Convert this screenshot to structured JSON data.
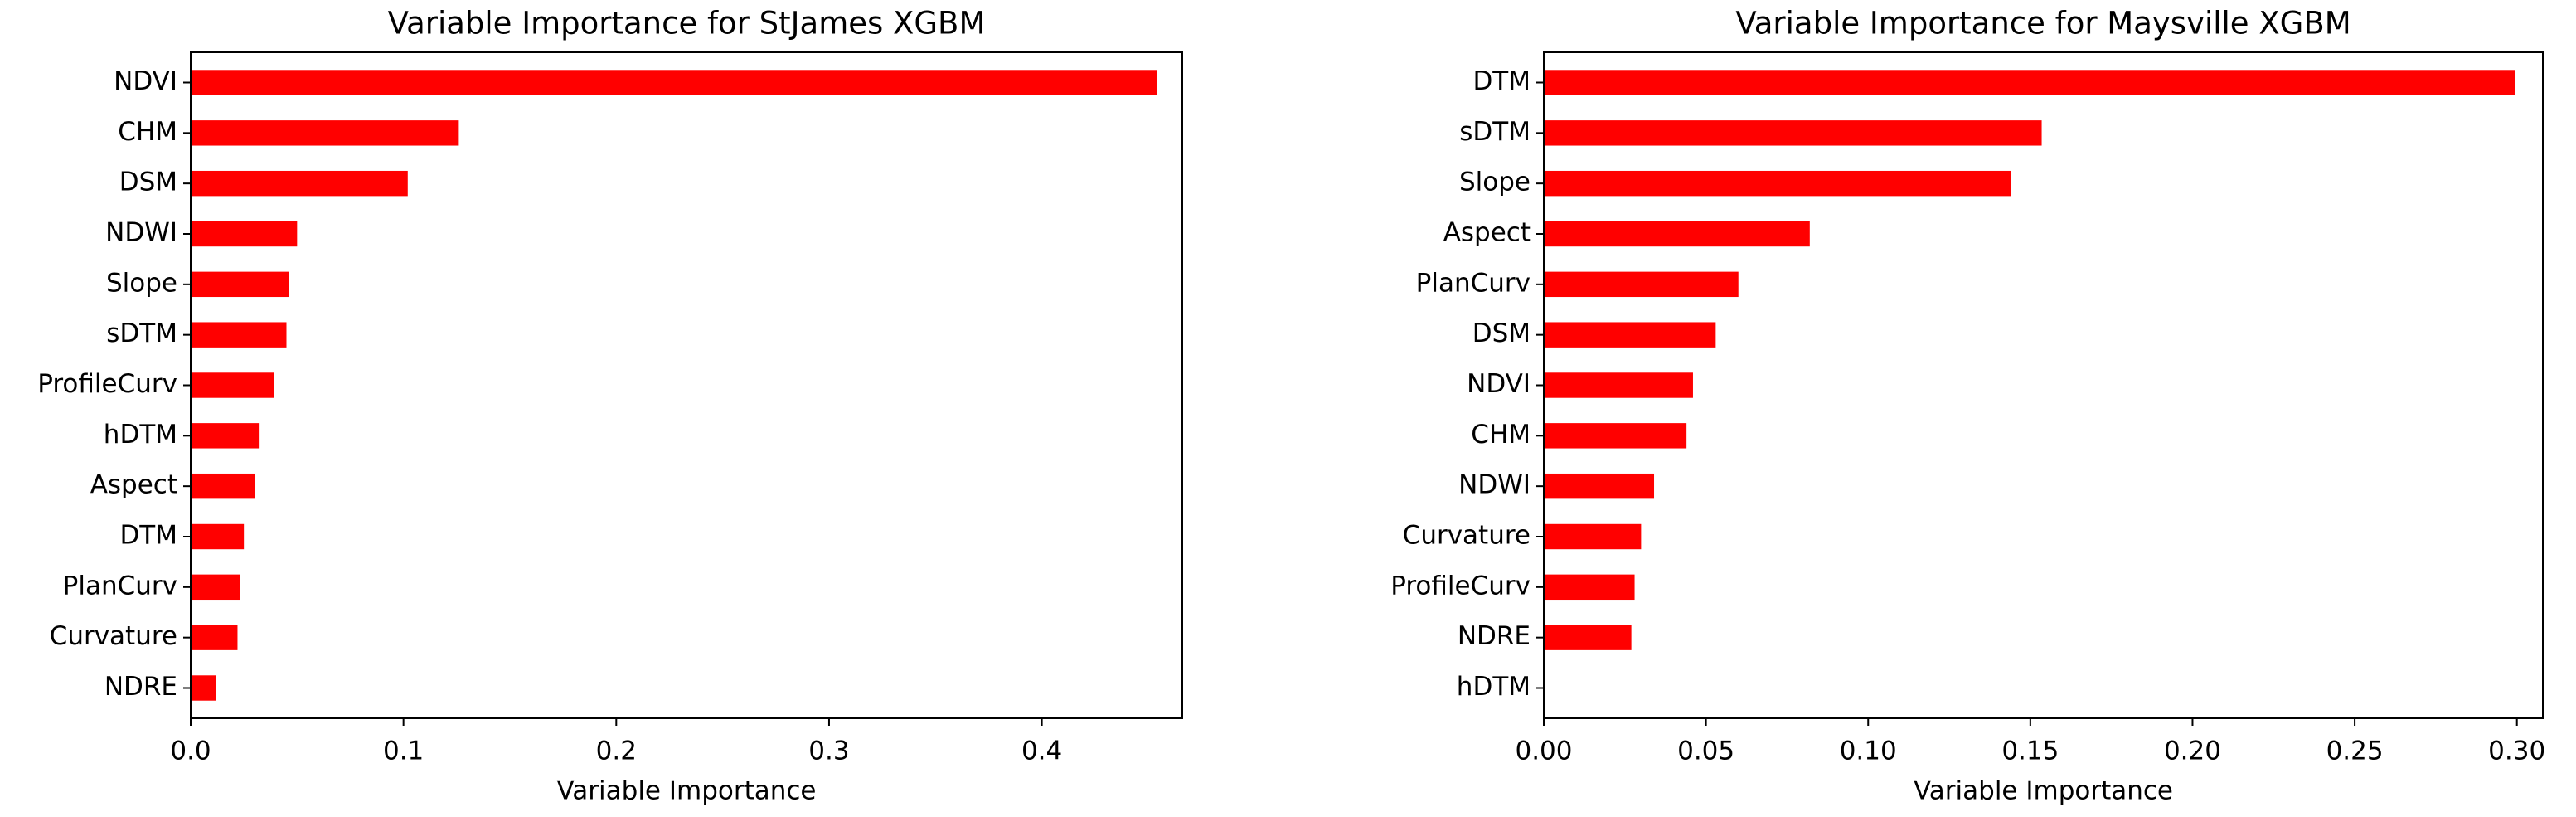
{
  "chart_data": [
    {
      "type": "barh",
      "title": "Variable Importance for StJames XGBM",
      "xlabel": "Variable Importance",
      "categories": [
        "NDVI",
        "CHM",
        "DSM",
        "NDWI",
        "Slope",
        "sDTM",
        "ProfileCurv",
        "hDTM",
        "Aspect",
        "DTM",
        "PlanCurv",
        "Curvature",
        "NDRE"
      ],
      "values": [
        0.454,
        0.126,
        0.102,
        0.05,
        0.046,
        0.045,
        0.039,
        0.032,
        0.03,
        0.025,
        0.023,
        0.022,
        0.012
      ],
      "color": "#ff0000",
      "xlim": [
        0,
        0.466
      ],
      "xticks": [
        {
          "value": 0,
          "label": "0.0"
        },
        0.1,
        0.2,
        0.3,
        0.4
      ]
    },
    {
      "type": "barh",
      "title": "Variable Importance for Maysville XGBM",
      "xlabel": "Variable Importance",
      "categories": [
        "DTM",
        "sDTM",
        "Slope",
        "Aspect",
        "PlanCurv",
        "DSM",
        "NDVI",
        "CHM",
        "NDWI",
        "Curvature",
        "ProfileCurv",
        "NDRE",
        "hDTM"
      ],
      "values": [
        0.2995,
        0.1535,
        0.144,
        0.082,
        0.06,
        0.053,
        0.046,
        0.044,
        0.034,
        0.03,
        0.028,
        0.027,
        0
      ],
      "color": "#ff0000",
      "xlim": [
        0,
        0.308
      ],
      "xticks": [
        {
          "value": 0,
          "label": "0.00"
        },
        0.05,
        {
          "value": 0.1,
          "label": "0.10"
        },
        0.15,
        {
          "value": 0.2,
          "label": "0.20"
        },
        0.25,
        {
          "value": 0.3,
          "label": "0.30"
        }
      ]
    }
  ]
}
